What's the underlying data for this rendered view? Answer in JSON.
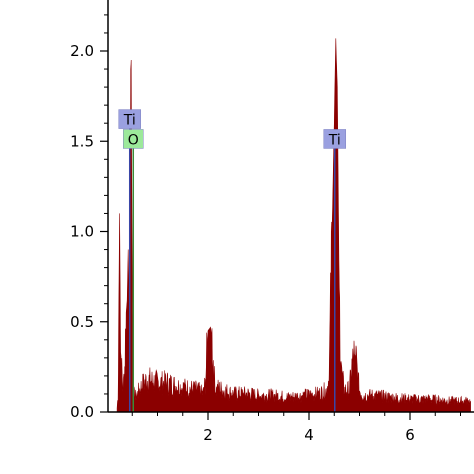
{
  "chart_data": {
    "type": "area",
    "title": "",
    "xlabel": "",
    "ylabel": "",
    "xlim": [
      0,
      7.2
    ],
    "ylim": [
      0,
      2.3
    ],
    "x_ticks": [
      2,
      4,
      6
    ],
    "x_tick_labels": [
      "2",
      "4",
      "6"
    ],
    "y_ticks": [
      0.0,
      0.5,
      1.0,
      1.5,
      2.0
    ],
    "y_tick_labels": [
      "0.0",
      "0.5",
      "1.0",
      "1.5",
      "2.0"
    ],
    "grid": false,
    "series": [
      {
        "color": "#8b0000",
        "x": [
          0.2,
          0.22,
          0.23,
          0.25,
          0.27,
          0.3,
          0.32,
          0.35,
          0.38,
          0.4,
          0.42,
          0.45,
          0.47,
          0.48,
          0.5,
          0.52,
          0.55,
          0.6,
          0.7,
          0.8,
          0.9,
          1.0,
          1.2,
          1.4,
          1.6,
          1.8,
          1.9,
          1.95,
          2.0,
          2.05,
          2.08,
          2.12,
          2.15,
          2.2,
          2.3,
          2.5,
          2.8,
          3.0,
          3.3,
          3.6,
          3.9,
          4.2,
          4.35,
          4.4,
          4.45,
          4.5,
          4.53,
          4.56,
          4.6,
          4.65,
          4.7,
          4.8,
          4.85,
          4.9,
          4.93,
          4.96,
          5.0,
          5.05,
          5.1,
          5.3,
          5.6,
          6.0,
          6.4,
          6.8,
          7.2
        ],
        "y": [
          0.02,
          0.1,
          0.45,
          1.1,
          0.35,
          0.18,
          0.12,
          0.25,
          0.55,
          0.62,
          0.9,
          0.35,
          1.9,
          1.95,
          0.6,
          0.12,
          0.08,
          0.1,
          0.15,
          0.18,
          0.17,
          0.16,
          0.16,
          0.14,
          0.13,
          0.12,
          0.1,
          0.16,
          0.45,
          0.47,
          0.4,
          0.2,
          0.12,
          0.13,
          0.12,
          0.1,
          0.1,
          0.09,
          0.09,
          0.08,
          0.09,
          0.1,
          0.12,
          0.2,
          0.9,
          1.6,
          2.07,
          1.8,
          0.6,
          0.2,
          0.12,
          0.12,
          0.25,
          0.32,
          0.3,
          0.2,
          0.12,
          0.1,
          0.09,
          0.09,
          0.08,
          0.07,
          0.07,
          0.06,
          0.06
        ]
      }
    ],
    "peak_markers": [
      {
        "label": "Ti",
        "x": 0.45,
        "y_top": 1.6,
        "label_y": 1.62,
        "bg": "#9aa0e0",
        "line": "#3a46a8"
      },
      {
        "label": "O",
        "x": 0.52,
        "y_top": 1.5,
        "label_y": 1.51,
        "bg": "#9ce99a",
        "line": "#3a8a3a"
      },
      {
        "label": "Ti",
        "x": 4.51,
        "y_top": 1.5,
        "label_y": 1.51,
        "bg": "#9aa0e0",
        "line": "#3a46a8"
      }
    ]
  }
}
